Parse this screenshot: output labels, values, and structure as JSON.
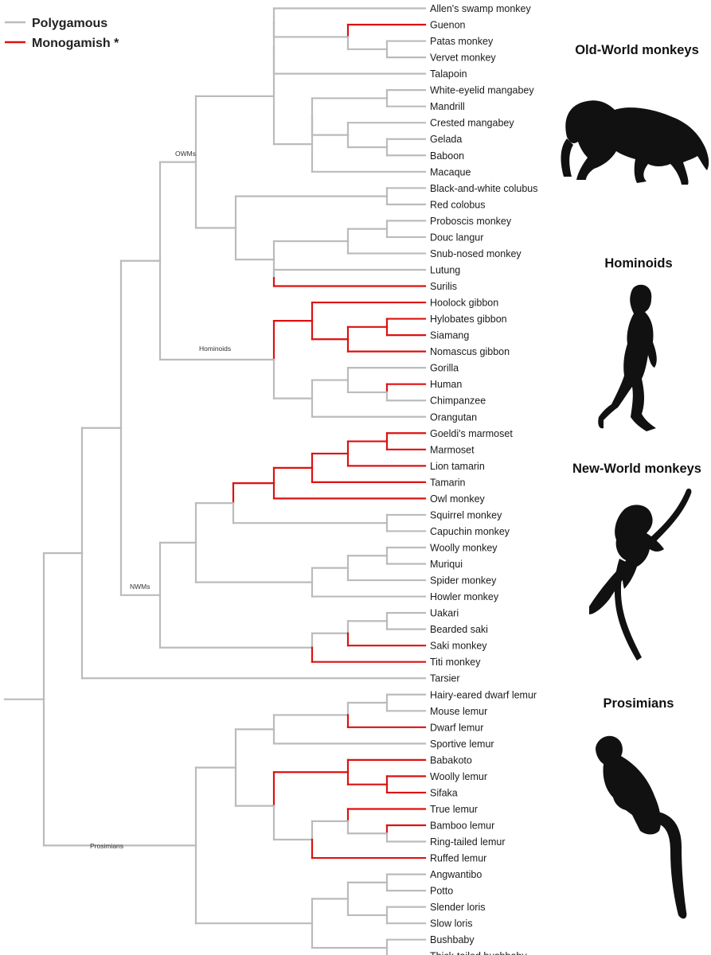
{
  "legend": [
    {
      "label": "Polygamous",
      "color": "#bbbbbb"
    },
    {
      "label": "Monogamish *",
      "color": "#dd1111"
    }
  ],
  "colors": {
    "polygamous": "#bbbbbb",
    "monogamish": "#dd1111",
    "silhouette": "#111111"
  },
  "group_titles": {
    "owm": "Old-World monkeys",
    "hominoids": "Hominoids",
    "nwm": "New-World monkeys",
    "prosimians": "Prosimians"
  },
  "clade_labels": {
    "owm": "OWMs",
    "hominoids": "Hominoids",
    "nwm": "NWMs",
    "prosimians": "Prosimians"
  },
  "species": [
    "Allen's swamp monkey",
    "Guenon",
    "Patas monkey",
    "Vervet monkey",
    "Talapoin",
    "White-eyelid mangabey",
    "Mandrill",
    "Crested mangabey",
    "Gelada",
    "Baboon",
    "Macaque",
    "Black-and-white colubus",
    "Red colobus",
    "Proboscis monkey",
    "Douc langur",
    "Snub-nosed monkey",
    "Lutung",
    "Surilis",
    "Hoolock gibbon",
    "Hylobates gibbon",
    "Siamang",
    "Nomascus gibbon",
    "Gorilla",
    "Human",
    "Chimpanzee",
    "Orangutan",
    "Goeldi's marmoset",
    "Marmoset",
    "Lion tamarin",
    "Tamarin",
    "Owl monkey",
    "Squirrel monkey",
    "Capuchin monkey",
    "Woolly monkey",
    "Muriqui",
    "Spider monkey",
    "Howler monkey",
    "Uakari",
    "Bearded saki",
    "Saki monkey",
    "Titi monkey",
    "Tarsier",
    "Hairy-eared dwarf lemur",
    "Mouse lemur",
    "Dwarf lemur",
    "Sportive lemur",
    "Babakoto",
    "Woolly lemur",
    "Sifaka",
    "True lemur",
    "Bamboo lemur",
    "Ring-tailed lemur",
    "Ruffed lemur",
    "Angwantibo",
    "Potto",
    "Slender loris",
    "Slow loris",
    "Bushbaby",
    "Thick-tailed bushbaby"
  ],
  "monogamish_species": [
    "Guenon",
    "Surilis",
    "Hoolock gibbon",
    "Hylobates gibbon",
    "Siamang",
    "Nomascus gibbon",
    "Human",
    "Goeldi's marmoset",
    "Marmoset",
    "Lion tamarin",
    "Tamarin",
    "Owl monkey",
    "Saki monkey",
    "Titi monkey",
    "Dwarf lemur",
    "Babakoto",
    "Woolly lemur",
    "Sifaka",
    "True lemur",
    "Bamboo lemur",
    "Ruffed lemur"
  ]
}
